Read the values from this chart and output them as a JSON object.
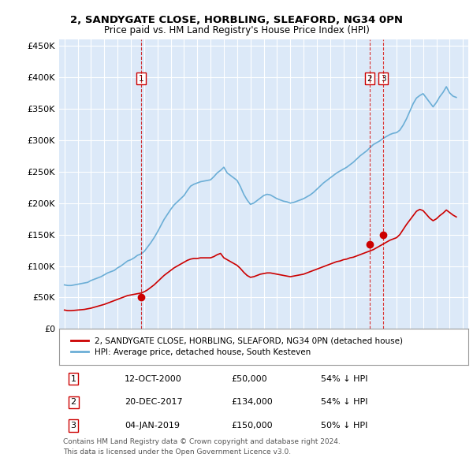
{
  "title": "2, SANDYGATE CLOSE, HORBLING, SLEAFORD, NG34 0PN",
  "subtitle": "Price paid vs. HM Land Registry's House Price Index (HPI)",
  "legend_line1": "2, SANDYGATE CLOSE, HORBLING, SLEAFORD, NG34 0PN (detached house)",
  "legend_line2": "HPI: Average price, detached house, South Kesteven",
  "footer1": "Contains HM Land Registry data © Crown copyright and database right 2024.",
  "footer2": "This data is licensed under the Open Government Licence v3.0.",
  "transactions": [
    {
      "num": 1,
      "date": "12-OCT-2000",
      "price": "£50,000",
      "pct": "54% ↓ HPI",
      "year": 2000.79,
      "value": 50000
    },
    {
      "num": 2,
      "date": "20-DEC-2017",
      "price": "£134,000",
      "pct": "54% ↓ HPI",
      "year": 2017.97,
      "value": 134000
    },
    {
      "num": 3,
      "date": "04-JAN-2019",
      "price": "£150,000",
      "pct": "50% ↓ HPI",
      "year": 2019.01,
      "value": 150000
    }
  ],
  "ylim": [
    0,
    460000
  ],
  "yticks": [
    0,
    50000,
    100000,
    150000,
    200000,
    250000,
    300000,
    350000,
    400000,
    450000
  ],
  "xlim": [
    1994.6,
    2025.4
  ],
  "background_color": "#dce9f8",
  "red_color": "#cc0000",
  "blue_color": "#6baed6",
  "grid_color": "#ffffff",
  "hpi_years": [
    1995,
    1995.25,
    1995.5,
    1995.75,
    1996,
    1996.25,
    1996.5,
    1996.75,
    1997,
    1997.25,
    1997.5,
    1997.75,
    1998,
    1998.25,
    1998.5,
    1998.75,
    1999,
    1999.25,
    1999.5,
    1999.75,
    2000,
    2000.25,
    2000.5,
    2000.75,
    2001,
    2001.25,
    2001.5,
    2001.75,
    2002,
    2002.25,
    2002.5,
    2002.75,
    2003,
    2003.25,
    2003.5,
    2003.75,
    2004,
    2004.25,
    2004.5,
    2004.75,
    2005,
    2005.25,
    2005.5,
    2005.75,
    2006,
    2006.25,
    2006.5,
    2006.75,
    2007,
    2007.25,
    2007.5,
    2007.75,
    2008,
    2008.25,
    2008.5,
    2008.75,
    2009,
    2009.25,
    2009.5,
    2009.75,
    2010,
    2010.25,
    2010.5,
    2010.75,
    2011,
    2011.25,
    2011.5,
    2011.75,
    2012,
    2012.25,
    2012.5,
    2012.75,
    2013,
    2013.25,
    2013.5,
    2013.75,
    2014,
    2014.25,
    2014.5,
    2014.75,
    2015,
    2015.25,
    2015.5,
    2015.75,
    2016,
    2016.25,
    2016.5,
    2016.75,
    2017,
    2017.25,
    2017.5,
    2017.75,
    2018,
    2018.25,
    2018.5,
    2018.75,
    2019,
    2019.25,
    2019.5,
    2019.75,
    2020,
    2020.25,
    2020.5,
    2020.75,
    2021,
    2021.25,
    2021.5,
    2021.75,
    2022,
    2022.25,
    2022.5,
    2022.75,
    2023,
    2023.25,
    2023.5,
    2023.75,
    2024,
    2024.25,
    2024.5
  ],
  "hpi_values": [
    70000,
    69000,
    69000,
    70000,
    71000,
    72000,
    73000,
    74000,
    77000,
    79000,
    81000,
    83000,
    86000,
    89000,
    91000,
    93000,
    97000,
    100000,
    104000,
    108000,
    110000,
    113000,
    117000,
    119000,
    123000,
    130000,
    137000,
    145000,
    154000,
    164000,
    174000,
    182000,
    190000,
    197000,
    202000,
    207000,
    212000,
    220000,
    227000,
    230000,
    232000,
    234000,
    235000,
    236000,
    237000,
    242000,
    248000,
    252000,
    257000,
    248000,
    244000,
    240000,
    236000,
    226000,
    214000,
    205000,
    198000,
    200000,
    204000,
    208000,
    212000,
    214000,
    213000,
    210000,
    207000,
    205000,
    203000,
    202000,
    200000,
    201000,
    203000,
    205000,
    207000,
    210000,
    213000,
    217000,
    222000,
    227000,
    232000,
    236000,
    240000,
    244000,
    248000,
    251000,
    254000,
    257000,
    261000,
    265000,
    270000,
    275000,
    279000,
    283000,
    288000,
    293000,
    296000,
    299000,
    303000,
    306000,
    309000,
    311000,
    312000,
    316000,
    324000,
    334000,
    346000,
    358000,
    367000,
    371000,
    374000,
    367000,
    360000,
    353000,
    360000,
    369000,
    376000,
    385000,
    375000,
    370000,
    368000
  ],
  "red_years": [
    1995,
    1995.25,
    1995.5,
    1995.75,
    1996,
    1996.25,
    1996.5,
    1996.75,
    1997,
    1997.25,
    1997.5,
    1997.75,
    1998,
    1998.25,
    1998.5,
    1998.75,
    1999,
    1999.25,
    1999.5,
    1999.75,
    2000,
    2000.25,
    2000.5,
    2000.75,
    2001,
    2001.25,
    2001.5,
    2001.75,
    2002,
    2002.25,
    2002.5,
    2002.75,
    2003,
    2003.25,
    2003.5,
    2003.75,
    2004,
    2004.25,
    2004.5,
    2004.75,
    2005,
    2005.25,
    2005.5,
    2005.75,
    2006,
    2006.25,
    2006.5,
    2006.75,
    2007,
    2007.25,
    2007.5,
    2007.75,
    2008,
    2008.25,
    2008.5,
    2008.75,
    2009,
    2009.25,
    2009.5,
    2009.75,
    2010,
    2010.25,
    2010.5,
    2010.75,
    2011,
    2011.25,
    2011.5,
    2011.75,
    2012,
    2012.25,
    2012.5,
    2012.75,
    2013,
    2013.25,
    2013.5,
    2013.75,
    2014,
    2014.25,
    2014.5,
    2014.75,
    2015,
    2015.25,
    2015.5,
    2015.75,
    2016,
    2016.25,
    2016.5,
    2016.75,
    2017,
    2017.25,
    2017.5,
    2017.75,
    2018,
    2018.25,
    2018.5,
    2018.75,
    2019,
    2019.25,
    2019.5,
    2019.75,
    2020,
    2020.25,
    2020.5,
    2020.75,
    2021,
    2021.25,
    2021.5,
    2021.75,
    2022,
    2022.25,
    2022.5,
    2022.75,
    2023,
    2023.25,
    2023.5,
    2023.75,
    2024,
    2024.25,
    2024.5
  ],
  "red_values": [
    30000,
    29000,
    29000,
    29500,
    30000,
    30500,
    31000,
    32000,
    33000,
    34500,
    36000,
    37500,
    39000,
    41000,
    43000,
    45000,
    47000,
    49000,
    51000,
    53000,
    54000,
    55000,
    56000,
    57000,
    59000,
    62000,
    66000,
    70000,
    75000,
    80000,
    85000,
    89000,
    93000,
    97000,
    100000,
    103000,
    106000,
    109000,
    111000,
    112000,
    112000,
    113000,
    113000,
    113000,
    113000,
    115000,
    118000,
    120000,
    113000,
    110000,
    107000,
    104000,
    101000,
    96000,
    90000,
    85000,
    82000,
    83000,
    85000,
    87000,
    88000,
    89000,
    89000,
    88000,
    87000,
    86000,
    85000,
    84000,
    83000,
    84000,
    85000,
    86000,
    87000,
    89000,
    91000,
    93000,
    95000,
    97000,
    99000,
    101000,
    103000,
    105000,
    107000,
    108000,
    110000,
    111000,
    113000,
    114000,
    116000,
    118000,
    120000,
    122000,
    124000,
    126000,
    129000,
    132000,
    135000,
    138000,
    141000,
    143000,
    145000,
    150000,
    158000,
    166000,
    173000,
    180000,
    187000,
    190000,
    188000,
    182000,
    176000,
    172000,
    175000,
    180000,
    184000,
    189000,
    185000,
    181000,
    178000
  ]
}
